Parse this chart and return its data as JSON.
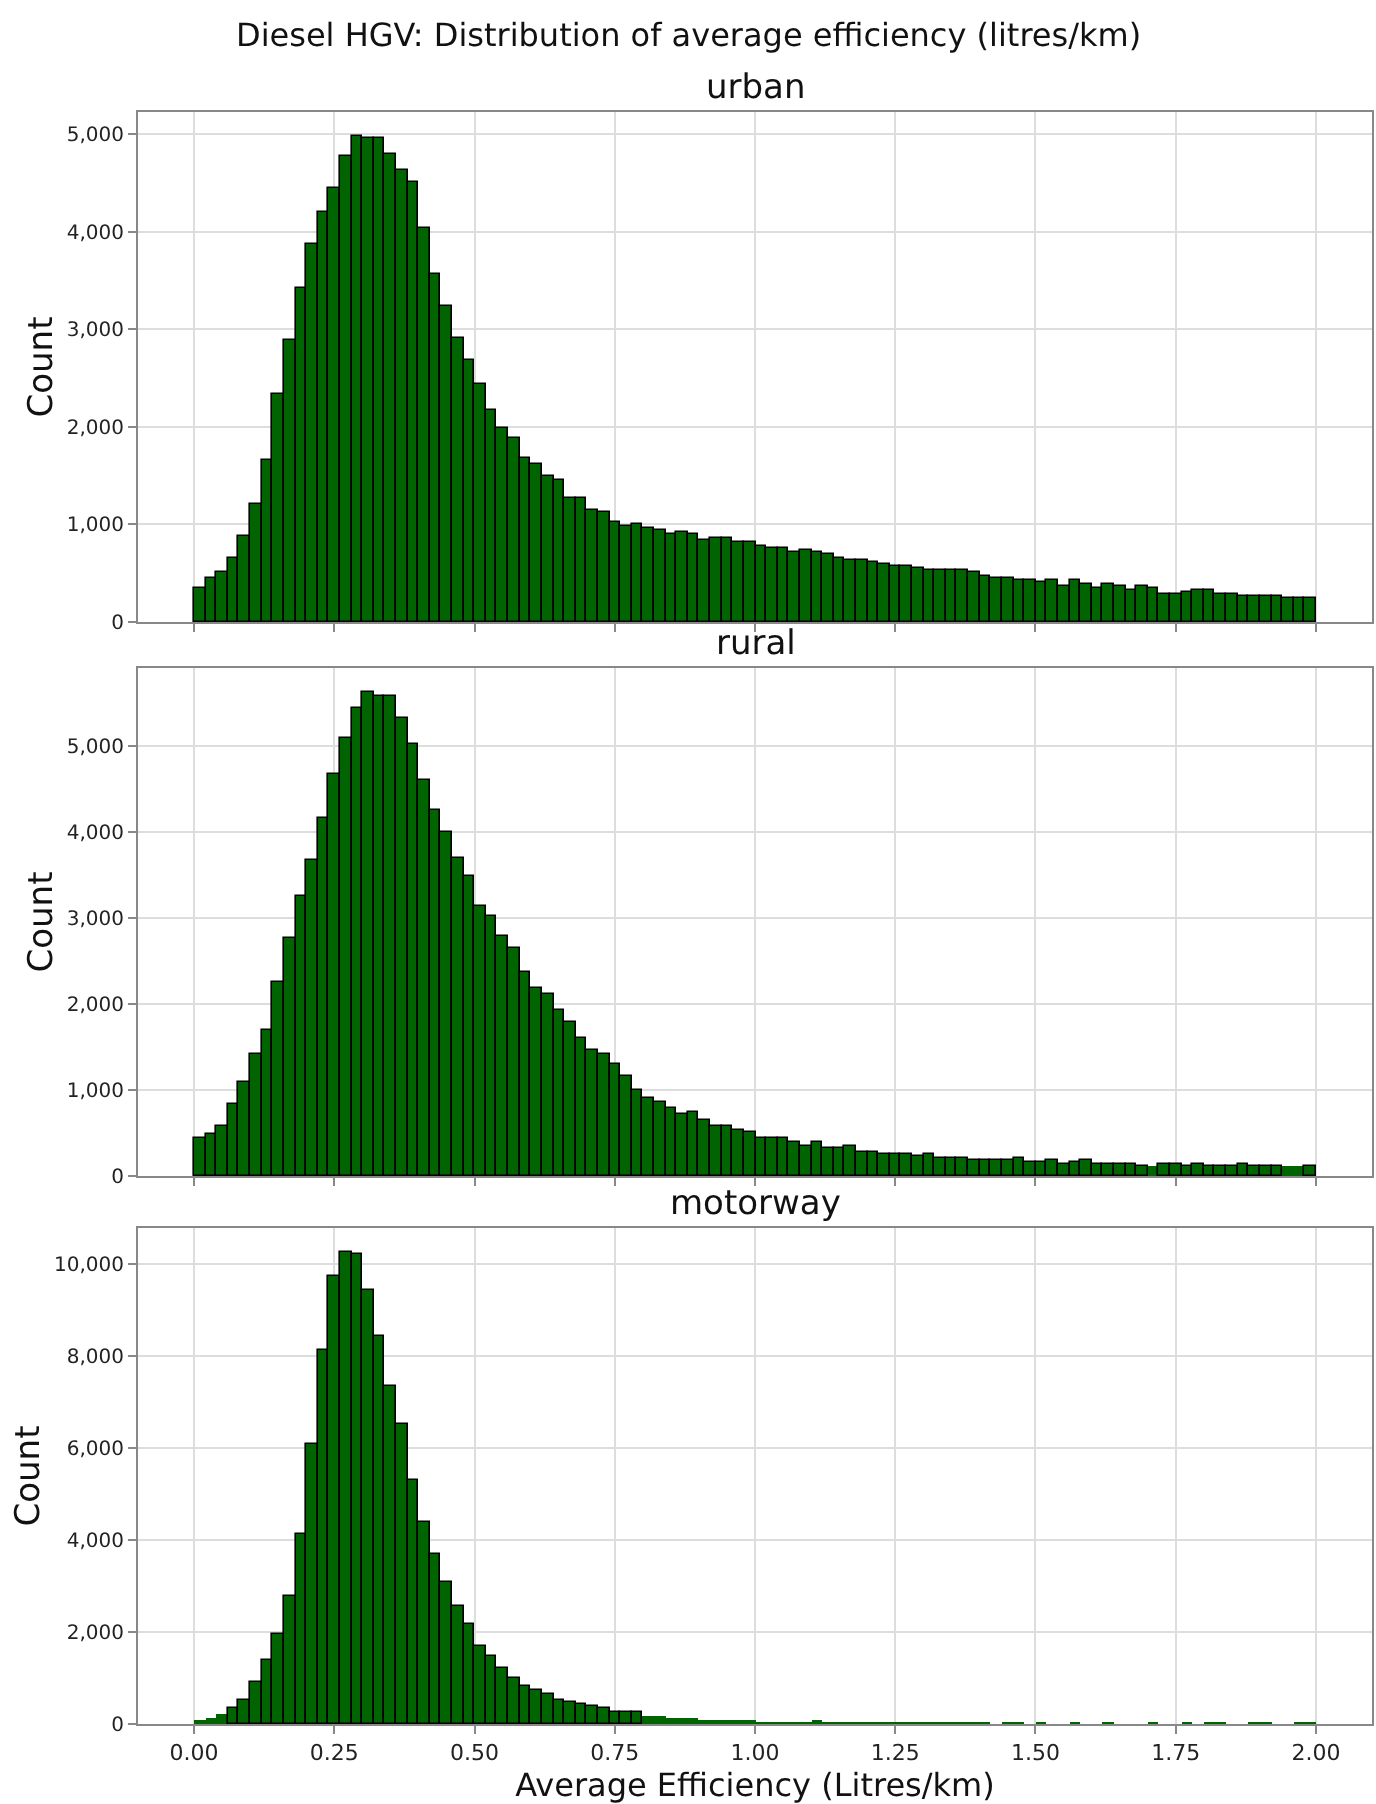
{
  "chart_data": [
    {
      "type": "histogram",
      "title": "Diesel HGV: Distribution of average efficiency (litres/km)",
      "subtitle": "urban",
      "ylabel": "Count",
      "color": "#006400",
      "grid": true,
      "tick_labels": "y",
      "bins": [
        0,
        0.02,
        0.04,
        0.06,
        0.08,
        0.1,
        0.12,
        0.14,
        0.16,
        0.18,
        0.2,
        0.22,
        0.24,
        0.26,
        0.28,
        0.3,
        0.32,
        0.34,
        0.36,
        0.38,
        0.4,
        0.42,
        0.44,
        0.46,
        0.48,
        0.5,
        0.52,
        0.54,
        0.56,
        0.58,
        0.6,
        0.62,
        0.64,
        0.66,
        0.68,
        0.7,
        0.72,
        0.74,
        0.76,
        0.78,
        0.8,
        0.82,
        0.84,
        0.86,
        0.88,
        0.9,
        0.92,
        0.94,
        0.96,
        0.98,
        1,
        1.02,
        1.04,
        1.06,
        1.08,
        1.1,
        1.12,
        1.14,
        1.16,
        1.18,
        1.2,
        1.22,
        1.24,
        1.26,
        1.28,
        1.3,
        1.32,
        1.34,
        1.36,
        1.38,
        1.4,
        1.42,
        1.44,
        1.46,
        1.48,
        1.5,
        1.52,
        1.54,
        1.56,
        1.58,
        1.6,
        1.62,
        1.64,
        1.66,
        1.68,
        1.7,
        1.72,
        1.74,
        1.76,
        1.78,
        1.8,
        1.82,
        1.84,
        1.86,
        1.88,
        1.9,
        1.92,
        1.94,
        1.96,
        1.98,
        2
      ],
      "values": [
        340,
        450,
        510,
        650,
        890,
        1220,
        1660,
        2340,
        2900,
        3420,
        3870,
        4200,
        4460,
        4770,
        4980,
        4970,
        4960,
        4790,
        4640,
        4520,
        4050,
        3570,
        3250,
        2910,
        2690,
        2440,
        2170,
        1980,
        1880,
        1690,
        1630,
        1490,
        1460,
        1280,
        1270,
        1150,
        1120,
        1030,
        980,
        1000,
        960,
        940,
        910,
        930,
        900,
        850,
        870,
        860,
        830,
        830,
        780,
        760,
        760,
        720,
        740,
        720,
        700,
        660,
        630,
        630,
        620,
        590,
        570,
        570,
        550,
        540,
        540,
        540,
        540,
        510,
        480,
        450,
        450,
        430,
        430,
        420,
        430,
        370,
        430,
        390,
        350,
        390,
        360,
        330,
        370,
        340,
        280,
        280,
        300,
        320,
        320,
        290,
        280,
        260,
        260,
        260,
        260,
        250,
        250,
        250
      ],
      "xlim": [
        -0.1,
        2.1
      ],
      "xticks": [
        {
          "value": 0,
          "label": null
        },
        {
          "value": 0.25,
          "label": null
        },
        {
          "value": 0.5,
          "label": null
        },
        {
          "value": 0.75,
          "label": null
        },
        {
          "value": 1,
          "label": null
        },
        {
          "value": 1.25,
          "label": null
        },
        {
          "value": 1.5,
          "label": null
        },
        {
          "value": 1.75,
          "label": null
        },
        {
          "value": 2,
          "label": null
        }
      ],
      "ylim": [
        0,
        5230
      ],
      "yticks": [
        0,
        {
          "value": 1000,
          "label": "1,000"
        },
        {
          "value": 2000,
          "label": "2,000"
        },
        {
          "value": 3000,
          "label": "3,000"
        },
        {
          "value": 4000,
          "label": "4,000"
        },
        {
          "value": 5000,
          "label": "5,000"
        }
      ]
    },
    {
      "type": "histogram",
      "subtitle": "rural",
      "ylabel": "Count",
      "color": "#006400",
      "grid": true,
      "tick_labels": "y",
      "bins": [
        0,
        0.02,
        0.04,
        0.06,
        0.08,
        0.1,
        0.12,
        0.14,
        0.16,
        0.18,
        0.2,
        0.22,
        0.24,
        0.26,
        0.28,
        0.3,
        0.32,
        0.34,
        0.36,
        0.38,
        0.4,
        0.42,
        0.44,
        0.46,
        0.48,
        0.5,
        0.52,
        0.54,
        0.56,
        0.58,
        0.6,
        0.62,
        0.64,
        0.66,
        0.68,
        0.7,
        0.72,
        0.74,
        0.76,
        0.78,
        0.8,
        0.82,
        0.84,
        0.86,
        0.88,
        0.9,
        0.92,
        0.94,
        0.96,
        0.98,
        1,
        1.02,
        1.04,
        1.06,
        1.08,
        1.1,
        1.12,
        1.14,
        1.16,
        1.18,
        1.2,
        1.22,
        1.24,
        1.26,
        1.28,
        1.3,
        1.32,
        1.34,
        1.36,
        1.38,
        1.4,
        1.42,
        1.44,
        1.46,
        1.48,
        1.5,
        1.52,
        1.54,
        1.56,
        1.58,
        1.6,
        1.62,
        1.64,
        1.66,
        1.68,
        1.7,
        1.72,
        1.74,
        1.76,
        1.78,
        1.8,
        1.82,
        1.84,
        1.86,
        1.88,
        1.9,
        1.92,
        1.94,
        1.96,
        1.98,
        2
      ],
      "values": [
        430,
        490,
        590,
        830,
        1090,
        1420,
        1700,
        2260,
        2760,
        3250,
        3680,
        4160,
        4680,
        5090,
        5430,
        5620,
        5570,
        5580,
        5310,
        5020,
        4610,
        4260,
        3990,
        3690,
        3480,
        3140,
        3030,
        2790,
        2650,
        2360,
        2190,
        2110,
        1930,
        1800,
        1600,
        1460,
        1420,
        1290,
        1160,
        1010,
        910,
        860,
        780,
        730,
        740,
        640,
        590,
        570,
        540,
        510,
        440,
        430,
        430,
        400,
        360,
        400,
        330,
        320,
        360,
        290,
        290,
        260,
        260,
        250,
        230,
        250,
        220,
        220,
        220,
        190,
        190,
        190,
        190,
        200,
        170,
        170,
        190,
        150,
        160,
        180,
        130,
        150,
        140,
        130,
        120,
        110,
        140,
        130,
        120,
        150,
        120,
        120,
        120,
        130,
        120,
        120,
        120,
        110,
        110,
        120
      ],
      "xlim": [
        -0.1,
        2.1
      ],
      "xticks": [
        {
          "value": 0,
          "label": null
        },
        {
          "value": 0.25,
          "label": null
        },
        {
          "value": 0.5,
          "label": null
        },
        {
          "value": 0.75,
          "label": null
        },
        {
          "value": 1,
          "label": null
        },
        {
          "value": 1.25,
          "label": null
        },
        {
          "value": 1.5,
          "label": null
        },
        {
          "value": 1.75,
          "label": null
        },
        {
          "value": 2,
          "label": null
        }
      ],
      "ylim": [
        0,
        5900
      ],
      "yticks": [
        0,
        {
          "value": 1000,
          "label": "1,000"
        },
        {
          "value": 2000,
          "label": "2,000"
        },
        {
          "value": 3000,
          "label": "3,000"
        },
        {
          "value": 4000,
          "label": "4,000"
        },
        {
          "value": 5000,
          "label": "5,000"
        }
      ]
    },
    {
      "type": "histogram",
      "subtitle": "motorway",
      "xlabel": "Average Efficiency (Litres/km)",
      "ylabel": "Count",
      "color": "#006400",
      "grid": true,
      "bins": [
        0,
        0.02,
        0.04,
        0.06,
        0.08,
        0.1,
        0.12,
        0.14,
        0.16,
        0.18,
        0.2,
        0.22,
        0.24,
        0.26,
        0.28,
        0.3,
        0.32,
        0.34,
        0.36,
        0.38,
        0.4,
        0.42,
        0.44,
        0.46,
        0.48,
        0.5,
        0.52,
        0.54,
        0.56,
        0.58,
        0.6,
        0.62,
        0.64,
        0.66,
        0.68,
        0.7,
        0.72,
        0.74,
        0.76,
        0.78,
        0.8,
        0.82,
        0.84,
        0.86,
        0.88,
        0.9,
        0.92,
        0.94,
        0.96,
        0.98,
        1,
        1.02,
        1.04,
        1.06,
        1.08,
        1.1,
        1.12,
        1.14,
        1.16,
        1.18,
        1.2,
        1.22,
        1.24,
        1.26,
        1.28,
        1.3,
        1.32,
        1.34,
        1.36,
        1.38,
        1.4,
        1.42,
        1.44,
        1.46,
        1.48,
        1.5,
        1.52,
        1.54,
        1.56,
        1.58,
        1.6,
        1.62,
        1.64,
        1.66,
        1.68,
        1.7,
        1.72,
        1.74,
        1.76,
        1.78,
        1.8,
        1.82,
        1.84,
        1.86,
        1.88,
        1.9,
        1.92,
        1.94,
        1.96,
        1.98,
        2
      ],
      "values": [
        60,
        130,
        200,
        340,
        540,
        910,
        1380,
        1970,
        2790,
        4140,
        6100,
        8110,
        9730,
        10270,
        10200,
        9450,
        8450,
        7350,
        6530,
        5290,
        4380,
        3700,
        3090,
        2580,
        2160,
        1700,
        1480,
        1220,
        980,
        840,
        750,
        650,
        530,
        480,
        430,
        380,
        330,
        280,
        270,
        260,
        180,
        170,
        140,
        130,
        110,
        100,
        100,
        90,
        60,
        60,
        40,
        40,
        40,
        30,
        40,
        50,
        30,
        30,
        20,
        20,
        20,
        20,
        20,
        20,
        10,
        20,
        10,
        10,
        10,
        10,
        10,
        0,
        10,
        10,
        0,
        10,
        0,
        0,
        10,
        0,
        0,
        10,
        0,
        0,
        0,
        10,
        0,
        0,
        10,
        0,
        10,
        10,
        0,
        0,
        10,
        10,
        0,
        0,
        10,
        10
      ],
      "xlim": [
        -0.1,
        2.1
      ],
      "xticks": [
        {
          "value": 0,
          "label": "0.00"
        },
        {
          "value": 0.25,
          "label": "0.25"
        },
        {
          "value": 0.5,
          "label": "0.50"
        },
        {
          "value": 0.75,
          "label": "0.75"
        },
        {
          "value": 1,
          "label": "1.00"
        },
        {
          "value": 1.25,
          "label": "1.25"
        },
        {
          "value": 1.5,
          "label": "1.50"
        },
        {
          "value": 1.75,
          "label": "1.75"
        },
        {
          "value": 2,
          "label": "2.00"
        }
      ],
      "ylim": [
        0,
        10780
      ],
      "yticks": [
        0,
        {
          "value": 2000,
          "label": "2,000"
        },
        {
          "value": 4000,
          "label": "4,000"
        },
        {
          "value": 6000,
          "label": "6,000"
        },
        {
          "value": 8000,
          "label": "8,000"
        },
        {
          "value": 10000,
          "label": "10,000"
        }
      ]
    }
  ]
}
